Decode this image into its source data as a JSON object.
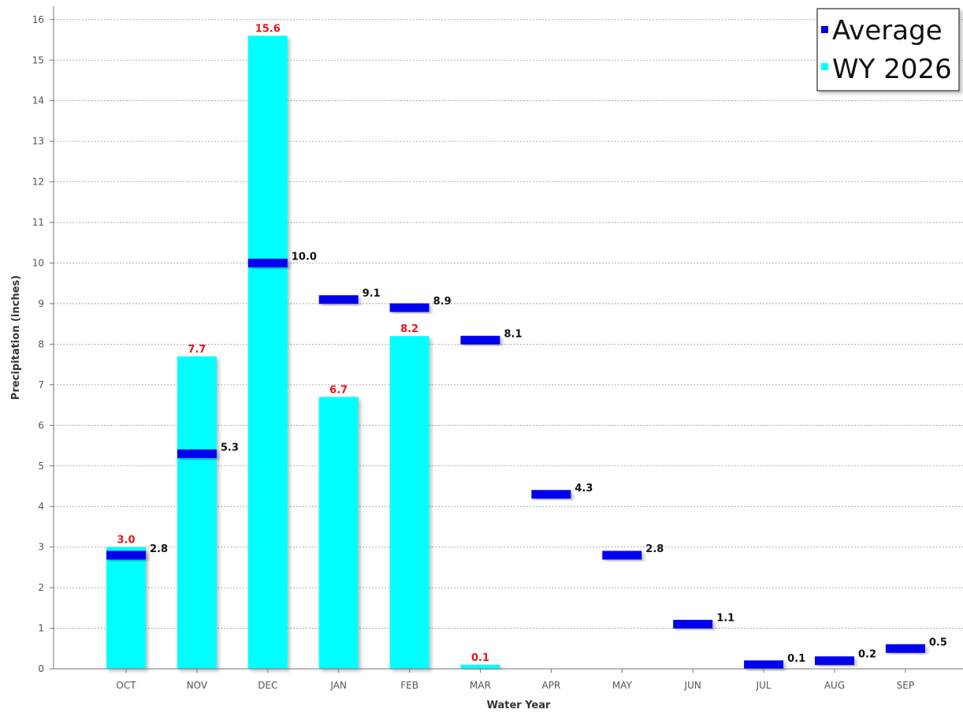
{
  "chart_data": {
    "type": "bar",
    "categories": [
      "OCT",
      "NOV",
      "DEC",
      "JAN",
      "FEB",
      "MAR",
      "APR",
      "MAY",
      "JUN",
      "JUL",
      "AUG",
      "SEP"
    ],
    "series": [
      {
        "name": "WY 2026",
        "kind": "bar",
        "color": "#00ffff",
        "label_color": "#e8141c",
        "values": [
          3.0,
          7.7,
          15.6,
          6.7,
          8.2,
          0.1,
          null,
          null,
          null,
          null,
          null,
          null
        ],
        "labels": [
          "3.0",
          "7.7",
          "15.6",
          "6.7",
          "8.2",
          "0.1",
          "",
          "",
          "",
          "",
          "",
          ""
        ]
      },
      {
        "name": "Average",
        "kind": "marker",
        "color": "#0000ee",
        "label_color": "#111111",
        "values": [
          2.8,
          5.3,
          10.0,
          9.1,
          8.9,
          8.1,
          4.3,
          2.8,
          1.1,
          0.1,
          0.2,
          0.5
        ],
        "labels": [
          "2.8",
          "5.3",
          "10.0",
          "9.1",
          "8.9",
          "8.1",
          "4.3",
          "2.8",
          "1.1",
          "0.1",
          "0.2",
          "0.5"
        ]
      }
    ],
    "xlabel": "Water Year",
    "ylabel": "Precipitation (inches)",
    "ylim": [
      0,
      16.4
    ],
    "yticks": [
      0,
      1,
      2,
      3,
      4,
      5,
      6,
      7,
      8,
      9,
      10,
      11,
      12,
      13,
      14,
      15,
      16
    ],
    "grid": true,
    "legend": {
      "position": "top-right",
      "entries": [
        "Average",
        "WY 2026"
      ]
    }
  }
}
